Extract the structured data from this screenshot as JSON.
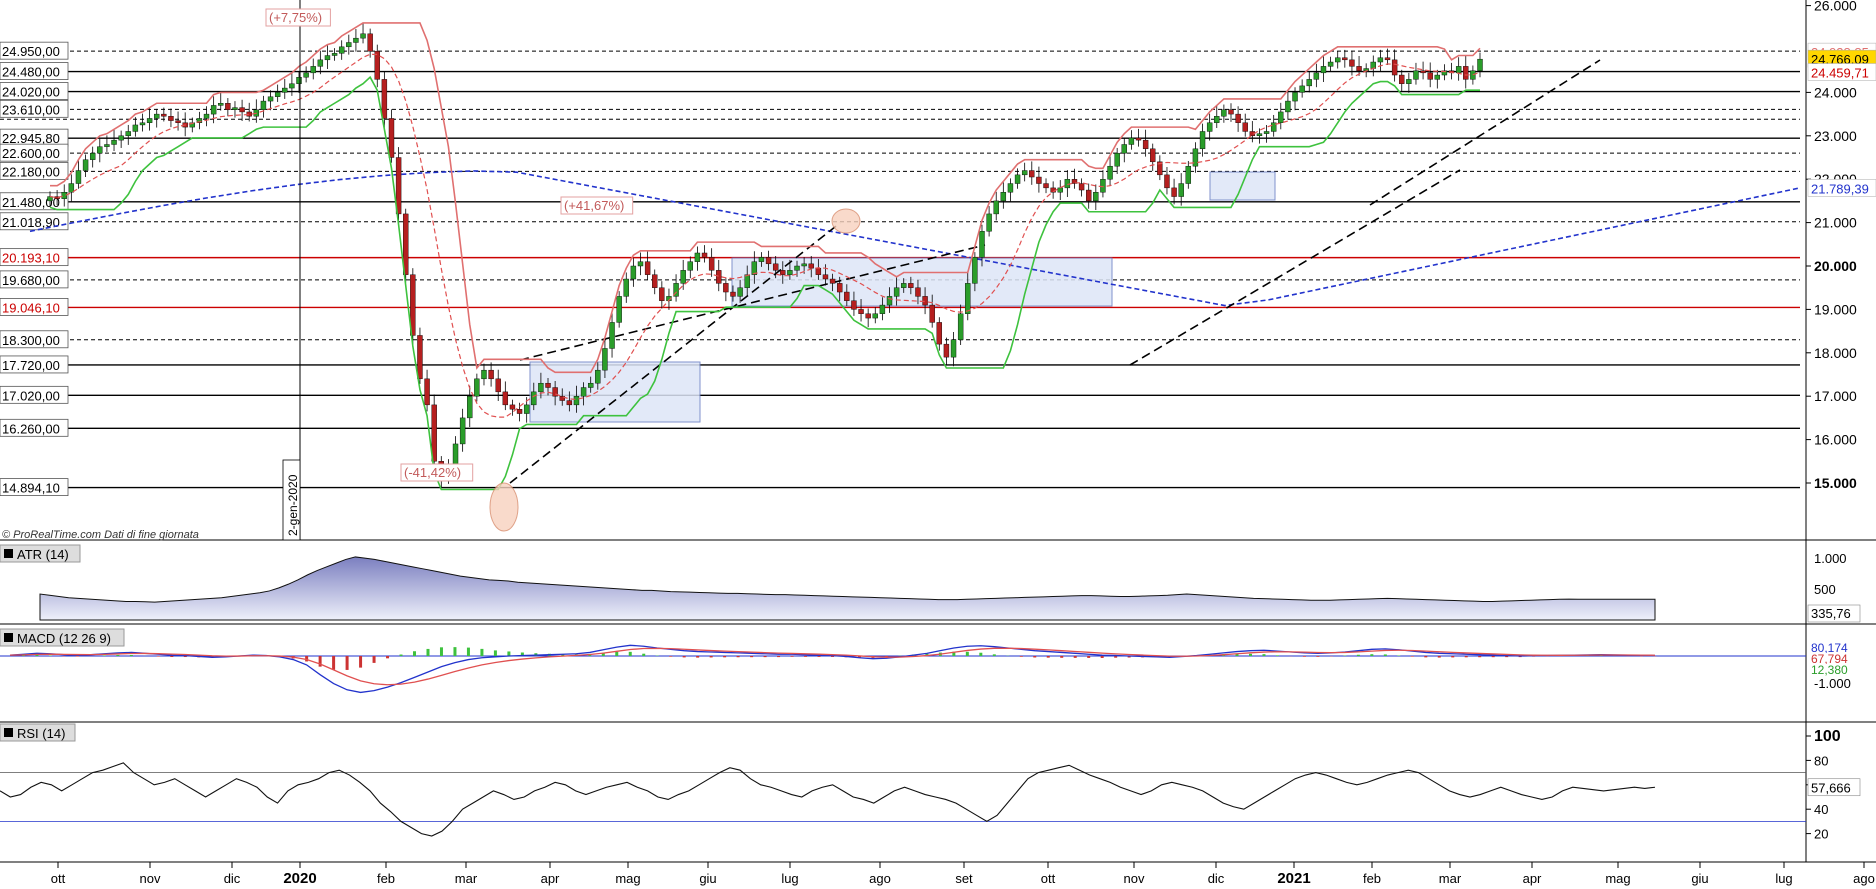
{
  "chart_data": {
    "type": "candlestick",
    "source_note": "© ProRealTime.com Dati di fine giornata",
    "start_marker": "2-gen-2020",
    "x_months": [
      "ott",
      "nov",
      "dic",
      "2020",
      "feb",
      "mar",
      "apr",
      "mag",
      "giu",
      "lug",
      "ago",
      "set",
      "ott",
      "nov",
      "dic",
      "2021",
      "feb",
      "mar",
      "apr",
      "mag",
      "giu",
      "lug",
      "ago"
    ],
    "price_axis": {
      "ticks": [
        15000,
        16000,
        17000,
        18000,
        19000,
        20000,
        21000,
        22000,
        23000,
        24000,
        26000
      ],
      "tick_labels": [
        "15.000",
        "16.000",
        "17.000",
        "18.000",
        "19.000",
        "20.000",
        "21.000",
        "22.000",
        "23.000",
        "24.000",
        "26.000"
      ],
      "bold_ticks": [
        "15.000",
        "20.000"
      ]
    },
    "current": {
      "last": "24.766,09",
      "upper_band": "24.928,85",
      "lower_band": "24.459,71",
      "ma_long": "21.789,39"
    },
    "levels": [
      {
        "value": 24950,
        "label": "24.950,00",
        "style": "dashed",
        "color": "#000000"
      },
      {
        "value": 24480,
        "label": "24.480,00",
        "style": "solid",
        "color": "#000000"
      },
      {
        "value": 24020,
        "label": "24.020,00",
        "style": "solid",
        "color": "#000000"
      },
      {
        "value": 23610,
        "label": "23.610,00",
        "style": "dashed",
        "color": "#000000"
      },
      {
        "value": 23380,
        "label": "",
        "style": "dashed",
        "color": "#000000"
      },
      {
        "value": 22946,
        "label": "22.945,80",
        "style": "solid",
        "color": "#000000"
      },
      {
        "value": 22600,
        "label": "22.600,00",
        "style": "dashed",
        "color": "#000000"
      },
      {
        "value": 22180,
        "label": "22.180,00",
        "style": "dashed",
        "color": "#000000"
      },
      {
        "value": 21480,
        "label": "21.480,00",
        "style": "solid",
        "color": "#000000"
      },
      {
        "value": 21019,
        "label": "21.018,90",
        "style": "dashed",
        "color": "#000000"
      },
      {
        "value": 20193,
        "label": "20.193,10",
        "style": "solid",
        "color": "#cc0000"
      },
      {
        "value": 19680,
        "label": "19.680,00",
        "style": "dashed",
        "color": "#000000"
      },
      {
        "value": 19046,
        "label": "19.046,10",
        "style": "solid",
        "color": "#cc0000"
      },
      {
        "value": 18300,
        "label": "18.300,00",
        "style": "dashed",
        "color": "#000000"
      },
      {
        "value": 17720,
        "label": "17.720,00",
        "style": "solid",
        "color": "#000000"
      },
      {
        "value": 17020,
        "label": "17.020,00",
        "style": "solid",
        "color": "#000000"
      },
      {
        "value": 16260,
        "label": "16.260,00",
        "style": "solid",
        "color": "#000000"
      },
      {
        "value": 14894,
        "label": "14.894,10",
        "style": "solid",
        "color": "#000000"
      }
    ],
    "annotations": [
      "(+7,75%)",
      "(+41,67%)",
      "(-41,42%)"
    ],
    "closes": [
      21600,
      21550,
      21700,
      21900,
      22200,
      22450,
      22600,
      22750,
      22800,
      22900,
      23000,
      23100,
      23250,
      23300,
      23400,
      23500,
      23450,
      23350,
      23300,
      23200,
      23300,
      23400,
      23500,
      23700,
      23750,
      23600,
      23650,
      23550,
      23450,
      23600,
      23800,
      23900,
      24000,
      24100,
      24200,
      24350,
      24450,
      24600,
      24750,
      24850,
      24900,
      25050,
      25150,
      25250,
      25350,
      24950,
      24300,
      23400,
      22500,
      21200,
      19800,
      18400,
      17400,
      16800,
      15500,
      15100,
      15400,
      15900,
      16500,
      17000,
      17400,
      17600,
      17400,
      17100,
      16800,
      16700,
      16600,
      16800,
      17100,
      17300,
      17200,
      17000,
      16900,
      16800,
      17000,
      17200,
      17300,
      17600,
      18100,
      18700,
      19300,
      19700,
      20000,
      20100,
      19800,
      19500,
      19200,
      19300,
      19600,
      19900,
      20100,
      20300,
      20200,
      19900,
      19600,
      19400,
      19300,
      19500,
      19800,
      20100,
      20200,
      20050,
      19900,
      19800,
      19900,
      20000,
      20050,
      19950,
      19800,
      19700,
      19600,
      19400,
      19200,
      19000,
      18900,
      18800,
      18900,
      19100,
      19300,
      19500,
      19600,
      19500,
      19300,
      19100,
      18700,
      18200,
      17900,
      18300,
      18900,
      19600,
      20200,
      20800,
      21200,
      21500,
      21700,
      21900,
      22100,
      22200,
      22050,
      21900,
      21800,
      21700,
      21800,
      22000,
      21900,
      21750,
      21500,
      21700,
      22000,
      22300,
      22600,
      22800,
      22950,
      22900,
      22700,
      22400,
      22100,
      21800,
      21600,
      21900,
      22300,
      22700,
      23100,
      23300,
      23450,
      23600,
      23500,
      23300,
      23100,
      23000,
      23050,
      23100,
      23300,
      23550,
      23800,
      24000,
      24150,
      24300,
      24450,
      24600,
      24700,
      24800,
      24750,
      24600,
      24500,
      24550,
      24700,
      24800,
      24750,
      24400,
      24200,
      24300,
      24500,
      24450,
      24300,
      24400,
      24500,
      24450,
      24600,
      24300,
      24500,
      24766
    ],
    "indicators": [
      {
        "name": "ATR (14)",
        "tick_labels": [
          "1.000",
          "500"
        ],
        "last": "335,76",
        "values": [
          420,
          400,
          380,
          360,
          350,
          340,
          330,
          320,
          310,
          300,
          300,
          295,
          290,
          300,
          310,
          320,
          330,
          340,
          350,
          360,
          380,
          400,
          420,
          440,
          470,
          520,
          580,
          650,
          730,
          800,
          860,
          920,
          980,
          1020,
          1000,
          980,
          950,
          920,
          890,
          860,
          830,
          800,
          770,
          740,
          710,
          690,
          670,
          650,
          640,
          630,
          610,
          600,
          590,
          580,
          570,
          560,
          550,
          540,
          530,
          520,
          510,
          500,
          490,
          480,
          480,
          470,
          460,
          455,
          450,
          445,
          440,
          435,
          430,
          430,
          425,
          420,
          415,
          410,
          410,
          405,
          400,
          395,
          390,
          385,
          380,
          375,
          370,
          365,
          360,
          355,
          350,
          345,
          340,
          335,
          330,
          330,
          330,
          335,
          340,
          345,
          350,
          355,
          360,
          365,
          370,
          375,
          380,
          385,
          390,
          395,
          395,
          390,
          385,
          380,
          380,
          385,
          390,
          395,
          400,
          410,
          420,
          410,
          400,
          390,
          380,
          370,
          360,
          350,
          345,
          340,
          335,
          330,
          325,
          320,
          320,
          320,
          325,
          330,
          335,
          340,
          345,
          350,
          345,
          340,
          335,
          330,
          325,
          320,
          315,
          310,
          305,
          300,
          300,
          305,
          310,
          315,
          320,
          325,
          330,
          335,
          338,
          336,
          335,
          335,
          336,
          336,
          335,
          335,
          336,
          336
        ]
      },
      {
        "name": "MACD (12 26 9)",
        "tick_labels": [
          "-1.000"
        ],
        "last_values": [
          "80,174",
          "67,794",
          "12,380"
        ],
        "macd": [
          20,
          40,
          60,
          50,
          30,
          20,
          30,
          50,
          70,
          80,
          60,
          40,
          20,
          10,
          -10,
          -30,
          -20,
          0,
          20,
          10,
          -20,
          -80,
          -200,
          -420,
          -620,
          -760,
          -820,
          -780,
          -700,
          -600,
          -480,
          -360,
          -240,
          -150,
          -80,
          -40,
          -20,
          0,
          10,
          20,
          30,
          40,
          50,
          80,
          140,
          200,
          240,
          220,
          180,
          150,
          120,
          100,
          90,
          80,
          70,
          60,
          50,
          40,
          40,
          30,
          20,
          10,
          -10,
          -40,
          -60,
          -50,
          -20,
          20,
          60,
          120,
          180,
          220,
          230,
          210,
          180,
          150,
          120,
          100,
          80,
          60,
          40,
          20,
          10,
          0,
          -10,
          -20,
          -30,
          -10,
          10,
          40,
          70,
          100,
          120,
          130,
          110,
          90,
          70,
          60,
          70,
          90,
          120,
          150,
          160,
          140,
          110,
          80,
          60,
          50,
          40,
          30,
          20,
          10,
          0,
          5,
          10,
          15,
          20,
          25,
          30,
          25,
          20,
          15,
          12
        ]
      },
      {
        "name": "RSI (14)",
        "tick_labels": [
          "100",
          "80",
          "60",
          "40",
          "20"
        ],
        "last": "57,666",
        "values": [
          55,
          50,
          52,
          58,
          62,
          60,
          55,
          60,
          65,
          70,
          72,
          75,
          78,
          70,
          65,
          60,
          62,
          65,
          60,
          55,
          50,
          55,
          60,
          65,
          62,
          58,
          50,
          45,
          55,
          60,
          62,
          65,
          70,
          72,
          68,
          62,
          55,
          45,
          38,
          30,
          25,
          20,
          18,
          22,
          30,
          40,
          45,
          50,
          55,
          52,
          48,
          50,
          55,
          58,
          62,
          60,
          55,
          52,
          55,
          58,
          60,
          62,
          58,
          55,
          50,
          48,
          52,
          55,
          60,
          65,
          70,
          74,
          72,
          65,
          60,
          58,
          55,
          52,
          50,
          55,
          58,
          60,
          55,
          50,
          48,
          45,
          50,
          55,
          58,
          55,
          52,
          50,
          48,
          45,
          40,
          35,
          30,
          35,
          45,
          55,
          65,
          70,
          72,
          74,
          76,
          72,
          68,
          65,
          62,
          58,
          55,
          52,
          55,
          60,
          62,
          60,
          58,
          55,
          50,
          45,
          42,
          40,
          45,
          50,
          55,
          60,
          65,
          68,
          70,
          68,
          65,
          62,
          60,
          62,
          65,
          68,
          70,
          72,
          70,
          65,
          60,
          55,
          52,
          50,
          52,
          55,
          58,
          55,
          52,
          50,
          48,
          50,
          55,
          58,
          57,
          56,
          55,
          56,
          57,
          58,
          57,
          58
        ]
      }
    ]
  }
}
